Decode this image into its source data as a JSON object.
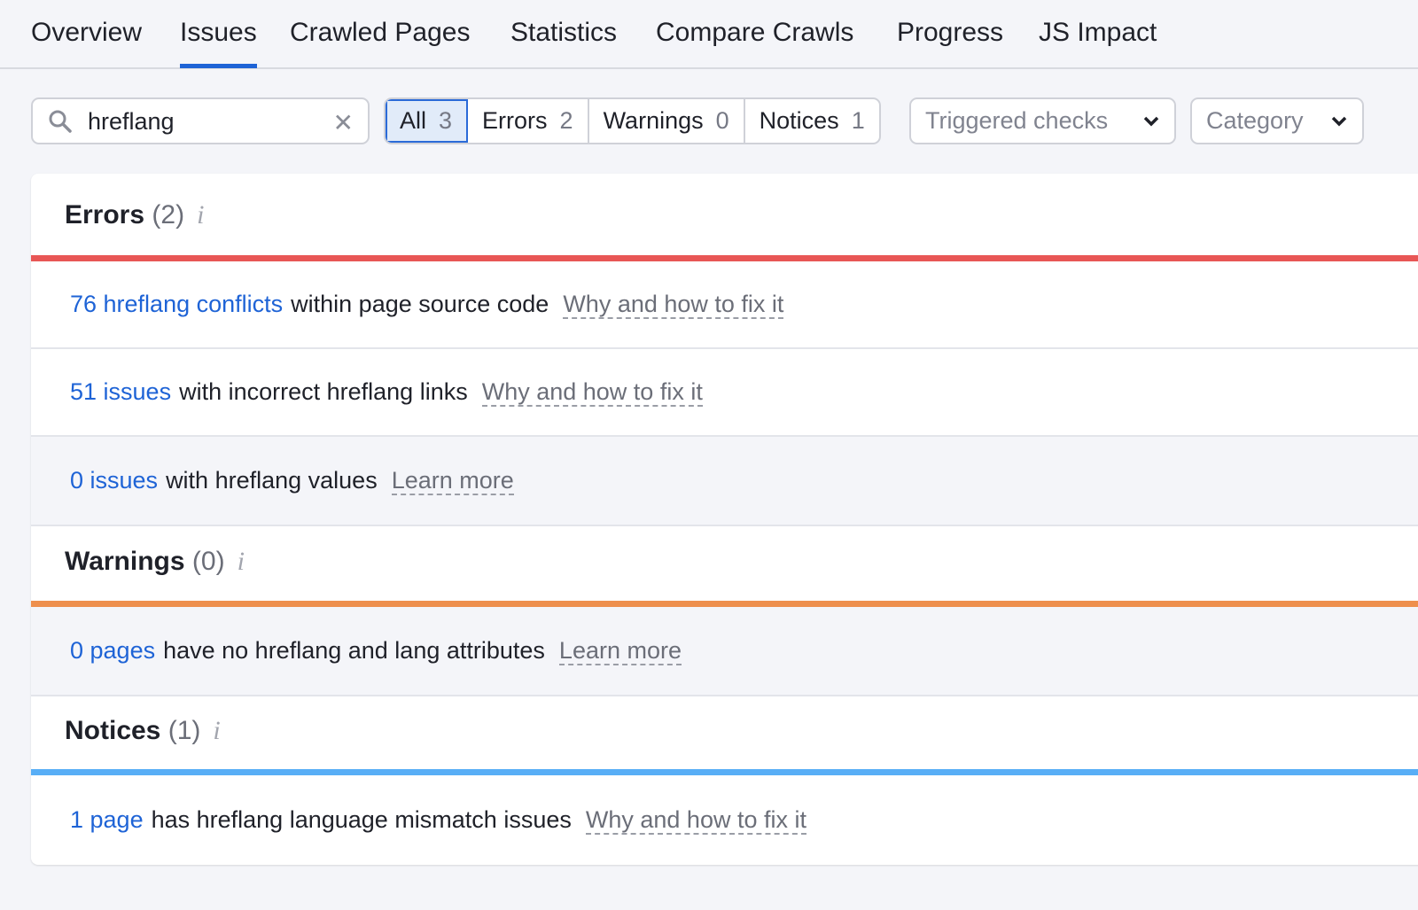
{
  "tabs": [
    "Overview",
    "Issues",
    "Crawled Pages",
    "Statistics",
    "Compare Crawls",
    "Progress",
    "JS Impact"
  ],
  "active_tab": "Issues",
  "search": {
    "value": "hreflang"
  },
  "filters": [
    {
      "label": "All",
      "count": "3"
    },
    {
      "label": "Errors",
      "count": "2"
    },
    {
      "label": "Warnings",
      "count": "0"
    },
    {
      "label": "Notices",
      "count": "1"
    }
  ],
  "dropdowns": {
    "triggered": "Triggered checks",
    "category": "Category"
  },
  "colors": {
    "error": "#e85655",
    "warning": "#ee8f4d",
    "notice": "#58aef6",
    "link": "#1e63d6"
  },
  "sections": {
    "errors": {
      "title": "Errors",
      "count": "(2)",
      "rows": [
        {
          "link": "76 hreflang conflicts",
          "text": "within page source code",
          "help": "Why and how to fix it"
        },
        {
          "link": "51 issues",
          "text": "with incorrect hreflang links",
          "help": "Why and how to fix it"
        },
        {
          "link": "0 issues",
          "text": "with hreflang values",
          "help": "Learn more"
        }
      ]
    },
    "warnings": {
      "title": "Warnings",
      "count": "(0)",
      "rows": [
        {
          "link": "0 pages",
          "text": "have no hreflang and lang attributes",
          "help": "Learn more"
        }
      ]
    },
    "notices": {
      "title": "Notices",
      "count": "(1)",
      "rows": [
        {
          "link": "1 page",
          "text": "has hreflang language mismatch issues",
          "help": "Why and how to fix it"
        }
      ]
    }
  }
}
